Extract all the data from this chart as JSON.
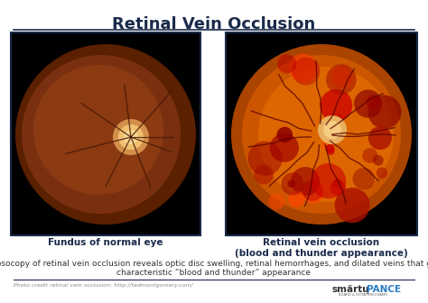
{
  "title": "Retinal Vein Occlusion",
  "title_color": "#1a2b4a",
  "title_fontsize": 13,
  "label_left": "Fundus of normal eye",
  "label_right": "Retinal vein occlusion\n(blood and thunder appearance)",
  "label_fontsize": 7.5,
  "label_color": "#1a2b4a",
  "description": "Fundosocopy of retinal vein occlusion reveals optic disc swelling, retinal hemorrhages, and dilated veins that give a\ncharacteristic “blood and thunder” appearance",
  "desc_fontsize": 6.5,
  "desc_color": "#333333",
  "credit_text": "Photo credit retinal vein occlusion: http://tedmontgomery.com/",
  "credit_fontsize": 4.5,
  "credit_color": "#888888",
  "bg_color": "#ffffff",
  "separator_color": "#1a2b4a",
  "left_image_bg": "#000000",
  "right_image_bg": "#000000",
  "smarty_color": "#333333",
  "pance_color": "#2a7dc5",
  "logo_sub": "BOARD & ROTATION EXAMS"
}
